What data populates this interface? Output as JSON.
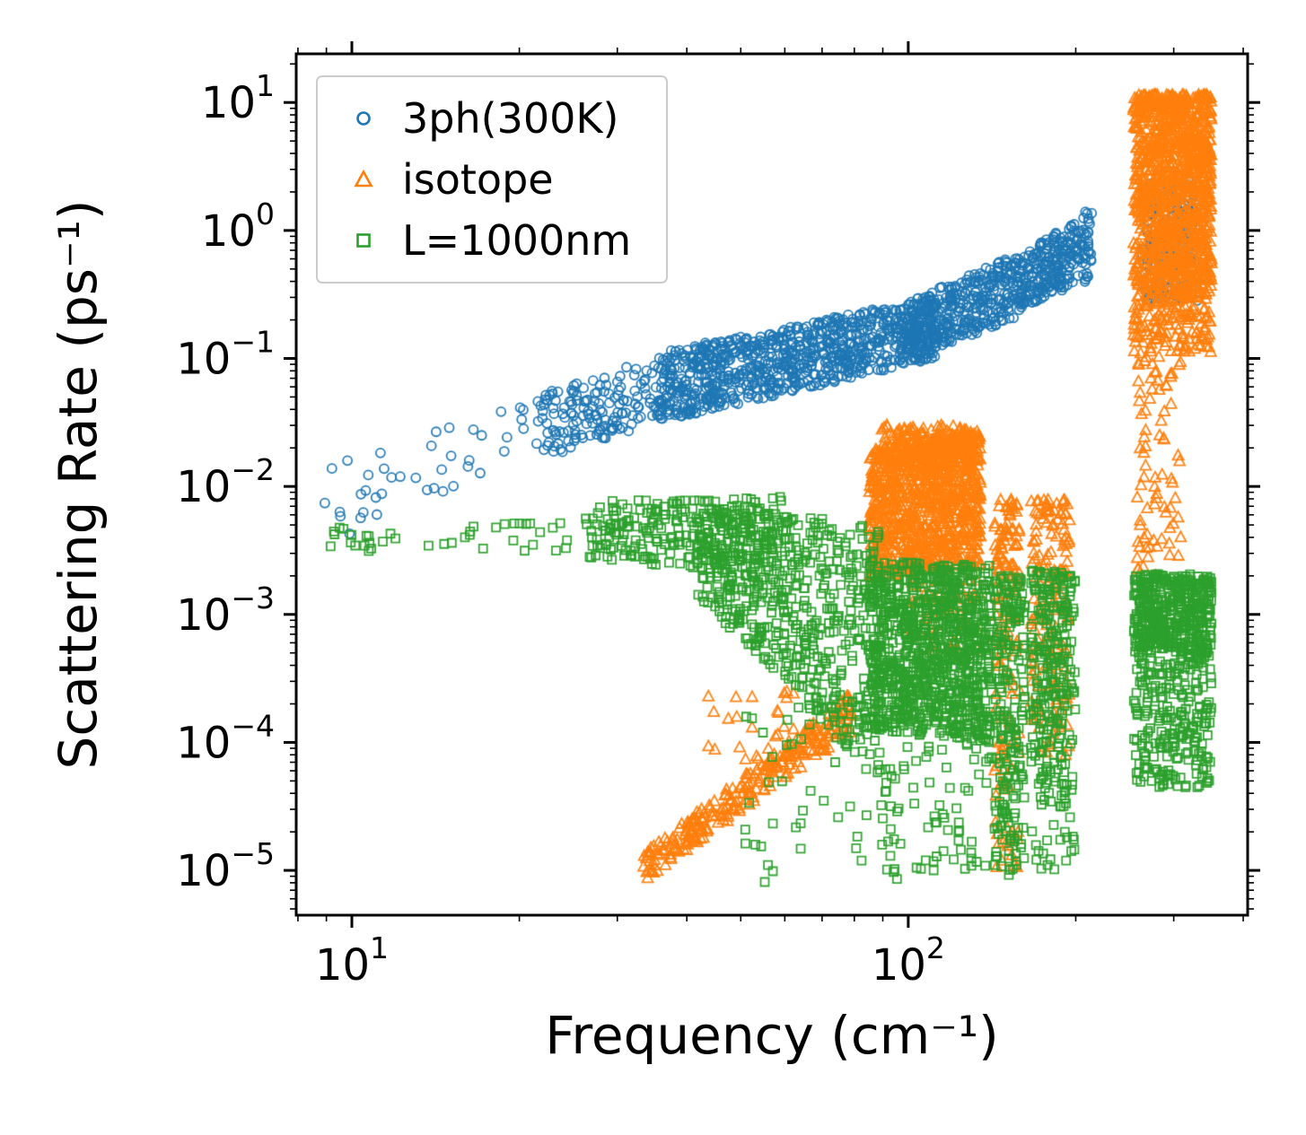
{
  "chart_data": {
    "type": "scatter",
    "title": "",
    "xlabel": "Frequency (cm⁻¹)",
    "ylabel": "Scattering Rate (ps⁻¹)",
    "xscale": "log",
    "yscale": "log",
    "xlim": [
      8,
      400
    ],
    "ylim": [
      5e-06,
      24
    ],
    "xlog_range": [
      0.9,
      2.61
    ],
    "ylog_range": [
      -5.35,
      1.38
    ],
    "x_tick_exponents": [
      1,
      2
    ],
    "y_tick_exponents": [
      -5,
      -4,
      -3,
      -2,
      -1,
      0,
      1
    ],
    "grid": false,
    "legend": {
      "position": "upper left"
    },
    "random_seed": 42,
    "series": [
      {
        "name": "3ph(300K)",
        "marker": "circle",
        "color": "#1f77b4",
        "clusters": [
          {
            "n": 40,
            "x": [
              0.95,
              1.33
            ],
            "y_start": [
              -2.45,
              -1.85
            ],
            "y_end": [
              -1.8,
              -1.3
            ]
          },
          {
            "n": 150,
            "x": [
              1.33,
              1.55
            ],
            "y_start": [
              -1.8,
              -1.3
            ],
            "y_end": [
              -1.5,
              -0.95
            ]
          },
          {
            "n": 900,
            "x": [
              1.55,
              2.05
            ],
            "y_start": [
              -1.5,
              -0.95
            ],
            "y_end": [
              -1.0,
              -0.52
            ]
          },
          {
            "n": 350,
            "x": [
              2.0,
              2.2
            ],
            "y_start": [
              -1.0,
              -0.55
            ],
            "y_end": [
              -0.68,
              -0.18
            ]
          },
          {
            "n": 250,
            "x": [
              2.2,
              2.33
            ],
            "y_start": [
              -0.62,
              -0.2
            ],
            "y_end": [
              -0.38,
              0.18
            ]
          },
          {
            "n": 200,
            "x": [
              2.42,
              2.52
            ],
            "y_start": [
              -0.55,
              0.42
            ]
          }
        ]
      },
      {
        "name": "isotope",
        "marker": "triangle-up",
        "color": "#ff7f0e",
        "clusters": [
          {
            "n": 280,
            "x": [
              1.52,
              1.9
            ],
            "y_start": [
              -5.1,
              -4.88
            ],
            "y_end": [
              -3.92,
              -3.6
            ]
          },
          {
            "n": 25,
            "x": [
              1.64,
              1.8
            ],
            "y_start": [
              -4.2,
              -3.6
            ]
          },
          {
            "n": 1000,
            "x": [
              1.93,
              2.13
            ],
            "y_start": [
              -2.72,
              -1.72
            ],
            "y_end": [
              -2.62,
              -1.56
            ],
            "y_bias": 1.2
          },
          {
            "n": 120,
            "x": [
              1.95,
              2.12
            ],
            "y_start": [
              -1.8,
              -1.52
            ]
          },
          {
            "n": 60,
            "x": [
              2.0,
              2.13
            ],
            "y_start": [
              -3.3,
              -2.7
            ]
          },
          {
            "n": 90,
            "x": [
              2.155,
              2.2
            ],
            "y_start": [
              -3.2,
              -2.1
            ],
            "y_bias": 1.2
          },
          {
            "n": 60,
            "x": [
              2.155,
              2.2
            ],
            "y_start": [
              -5.05,
              -3.2
            ]
          },
          {
            "n": 160,
            "x": [
              2.22,
              2.29
            ],
            "y_start": [
              -4.1,
              -2.1
            ],
            "y_bias": 1.3
          },
          {
            "n": 900,
            "x": [
              2.405,
              2.545
            ],
            "x_centers": [
              2.412,
              2.424,
              2.437,
              2.45,
              2.462,
              2.475,
              2.488,
              2.5,
              2.513,
              2.526,
              2.538
            ],
            "x_jitter": 0.014,
            "y_start": [
              -0.95,
              1.06
            ],
            "y_bias": 1.5
          },
          {
            "n": 350,
            "x": [
              2.41,
              2.545
            ],
            "y_start": [
              -0.5,
              0.72
            ]
          },
          {
            "n": 80,
            "x": [
              2.41,
              2.49
            ],
            "y_start": [
              -2.7,
              -0.95
            ]
          }
        ]
      },
      {
        "name": "L=1000nm",
        "marker": "square",
        "color": "#2ca02c",
        "clusters": [
          {
            "n": 40,
            "x": [
              0.96,
              1.42
            ],
            "y_start": [
              -2.52,
              -2.28
            ]
          },
          {
            "n": 260,
            "x": [
              1.42,
              1.78
            ],
            "y_start": [
              -2.55,
              -2.1
            ],
            "y_end": [
              -2.75,
              -2.08
            ]
          },
          {
            "n": 550,
            "x": [
              1.62,
              1.95
            ],
            "y_start": [
              -2.85,
              -2.15
            ],
            "y_end": [
              -4.3,
              -2.3
            ]
          },
          {
            "n": 50,
            "x": [
              1.7,
              1.98
            ],
            "y_start": [
              -5.1,
              -3.7
            ]
          },
          {
            "n": 1000,
            "x": [
              1.93,
              2.15
            ],
            "y_start": [
              -3.9,
              -2.58
            ],
            "y_end": [
              -4.0,
              -2.62
            ]
          },
          {
            "n": 70,
            "x": [
              1.95,
              2.15
            ],
            "y_start": [
              -5.0,
              -4.0
            ]
          },
          {
            "n": 220,
            "x": [
              2.155,
              2.21
            ],
            "y_start": [
              -5.05,
              -2.7
            ],
            "y_bias": 1.2
          },
          {
            "n": 260,
            "x": [
              2.22,
              2.3
            ],
            "y_start": [
              -4.4,
              -2.65
            ],
            "y_bias": 1.2
          },
          {
            "n": 30,
            "x": [
              2.22,
              2.3
            ],
            "y_start": [
              -5.0,
              -4.4
            ]
          },
          {
            "n": 450,
            "x": [
              2.405,
              2.545
            ],
            "y_start": [
              -4.35,
              -2.68
            ],
            "y_bias": 1.2
          },
          {
            "n": 250,
            "x": [
              2.405,
              2.545
            ],
            "y_start": [
              -3.3,
              -2.7
            ]
          }
        ]
      }
    ]
  }
}
